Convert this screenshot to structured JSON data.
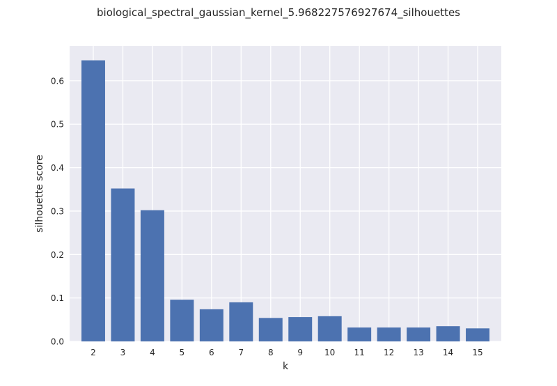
{
  "chart_data": {
    "type": "bar",
    "title": "biological_spectral_gaussian_kernel_5.968227576927674_silhouettes",
    "xlabel": "k",
    "ylabel": "silhouette score",
    "categories": [
      "2",
      "3",
      "4",
      "5",
      "6",
      "7",
      "8",
      "9",
      "10",
      "11",
      "12",
      "13",
      "14",
      "15"
    ],
    "values": [
      0.647,
      0.352,
      0.302,
      0.096,
      0.074,
      0.09,
      0.054,
      0.056,
      0.058,
      0.032,
      0.032,
      0.032,
      0.035,
      0.03
    ],
    "ylim": [
      0,
      0.68
    ],
    "yticks": [
      0.0,
      0.1,
      0.2,
      0.3,
      0.4,
      0.5,
      0.6
    ],
    "ytick_labels": [
      "0.0",
      "0.1",
      "0.2",
      "0.3",
      "0.4",
      "0.5",
      "0.6"
    ],
    "grid": true,
    "legend": "none",
    "colors": {
      "bar": "#4c72b0",
      "plot_background": "#eaeaf2",
      "grid": "#ffffff",
      "text": "#262626"
    }
  }
}
